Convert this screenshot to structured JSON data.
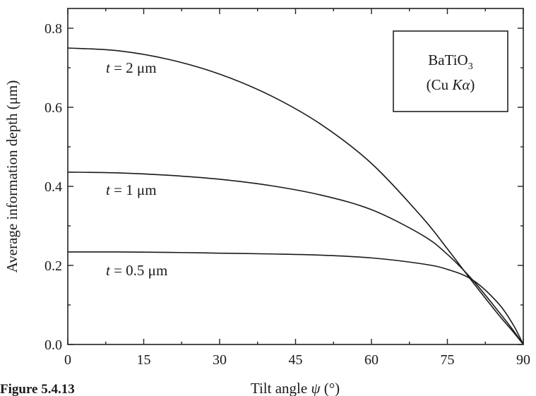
{
  "chart_data": {
    "type": "line",
    "xlabel_prefix": "Tilt angle ",
    "xlabel_symbol": "ψ",
    "xlabel_suffix": " (°)",
    "ylabel": "Average information depth (μm)",
    "xlim": [
      0,
      90
    ],
    "ylim": [
      0,
      0.85
    ],
    "xticks": [
      0,
      15,
      30,
      45,
      60,
      75,
      90
    ],
    "xtick_labels": [
      "0",
      "15",
      "30",
      "45",
      "60",
      "75",
      "90"
    ],
    "yticks": [
      0.0,
      0.2,
      0.4,
      0.6,
      0.8
    ],
    "ytick_labels": [
      "0.0",
      "0.2",
      "0.4",
      "0.6",
      "0.8"
    ],
    "grid": false,
    "legend": {
      "placement": "top-right",
      "line1_main": "BaTiO",
      "line1_sub": "3",
      "line2_open": "(Cu ",
      "line2_italic": "Kα",
      "line2_close": ")"
    },
    "series": [
      {
        "label_var": "t",
        "label_rest": " = 2 μm",
        "x": [
          0,
          10,
          20,
          30,
          40,
          50,
          60,
          70,
          75,
          80,
          85,
          88,
          90
        ],
        "y": [
          0.75,
          0.743,
          0.721,
          0.684,
          0.63,
          0.557,
          0.458,
          0.322,
          0.242,
          0.158,
          0.077,
          0.032,
          0.0
        ]
      },
      {
        "label_var": "t",
        "label_rest": " = 1 μm",
        "x": [
          0,
          10,
          20,
          30,
          40,
          50,
          60,
          70,
          75,
          80,
          85,
          88,
          90
        ],
        "y": [
          0.436,
          0.434,
          0.428,
          0.418,
          0.402,
          0.378,
          0.341,
          0.277,
          0.228,
          0.163,
          0.085,
          0.036,
          0.0
        ]
      },
      {
        "label_var": "t",
        "label_rest": " = 0.5 μm",
        "x": [
          0,
          10,
          20,
          30,
          40,
          50,
          60,
          70,
          75,
          80,
          85,
          88,
          90
        ],
        "y": [
          0.234,
          0.234,
          0.233,
          0.231,
          0.229,
          0.226,
          0.219,
          0.204,
          0.19,
          0.163,
          0.105,
          0.05,
          0.0
        ]
      }
    ]
  },
  "caption": "Figure 5.4.13"
}
